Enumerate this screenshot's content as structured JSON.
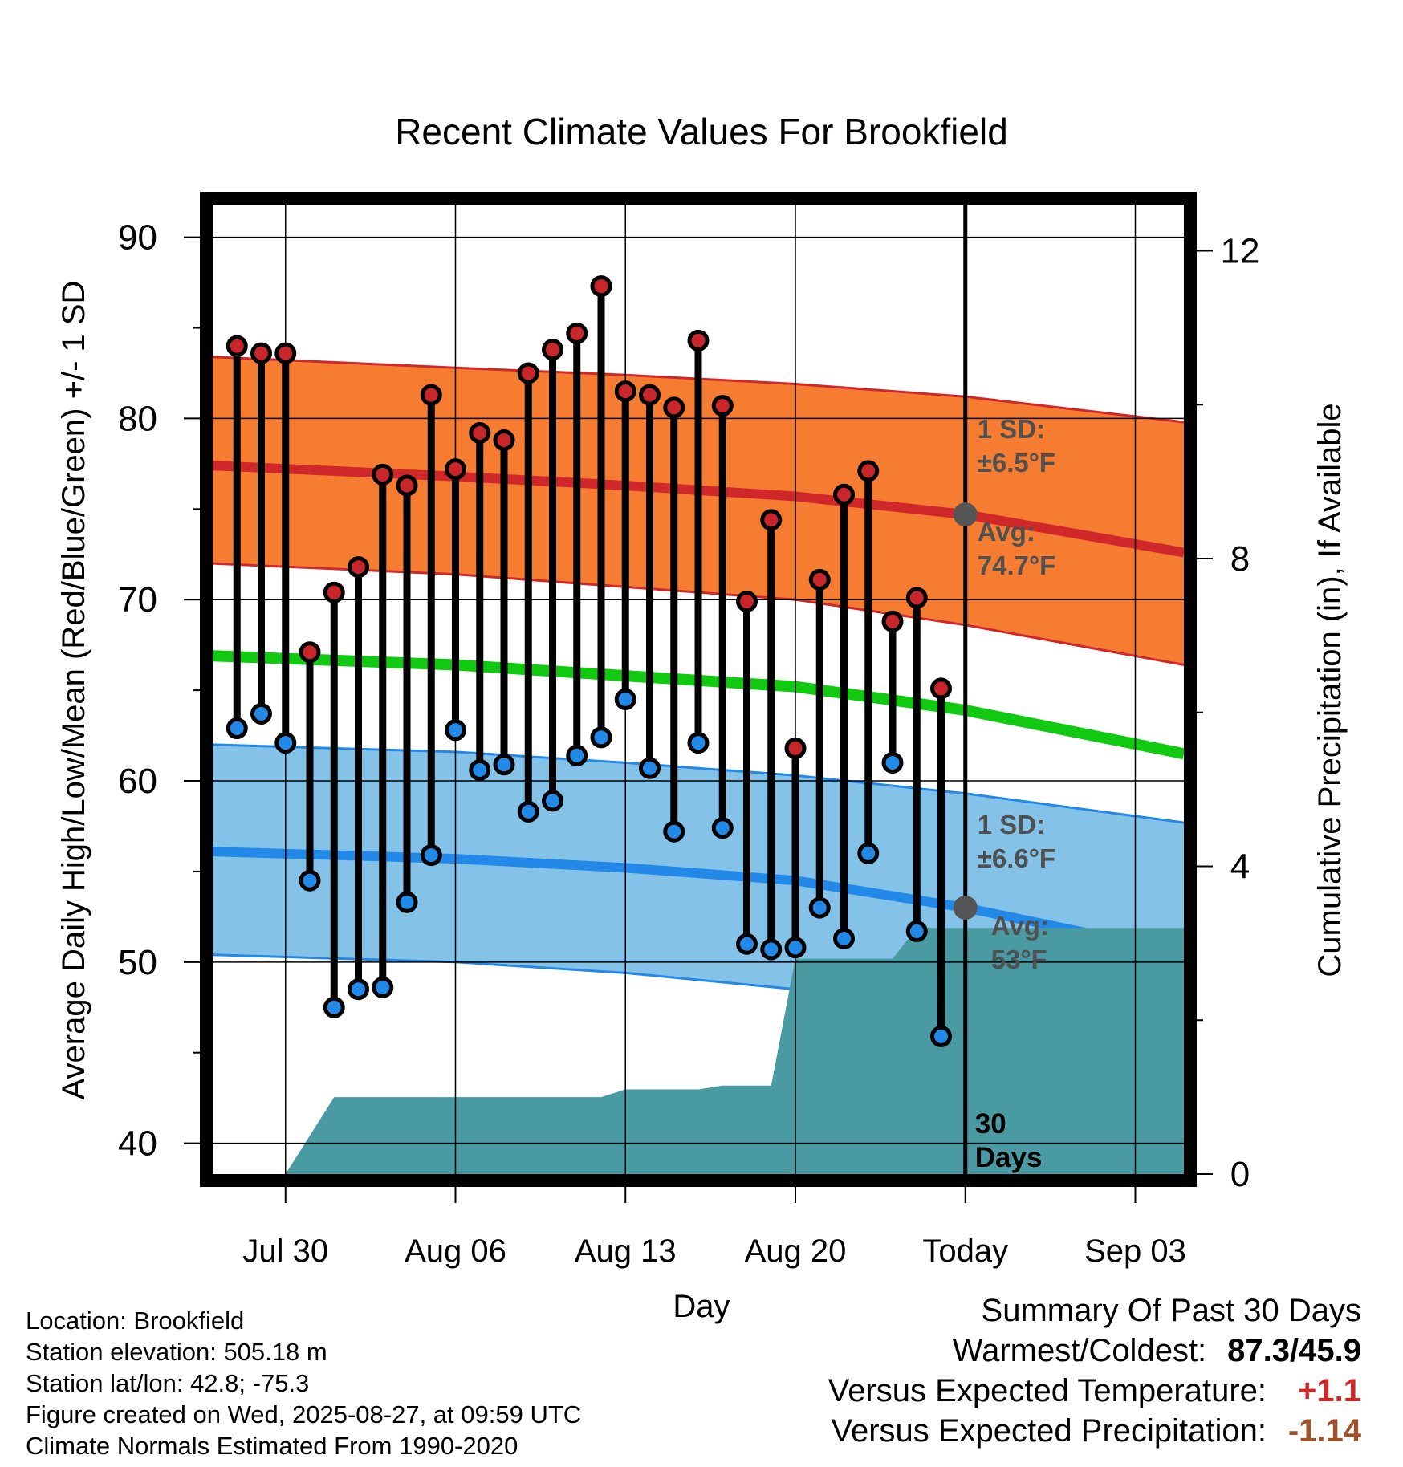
{
  "chart_data": {
    "type": "line",
    "title": "Recent Climate Values For Brookfield",
    "xlabel": "Day",
    "ylabel": "Average Daily High/Low/Mean (Red/Blue/Green) +/- 1 SD",
    "ylabel_right": "Cumulative Precipitation (in), If Available",
    "y_ticks": [
      "40",
      "50",
      "60",
      "70",
      "80",
      "90"
    ],
    "y_ticks_right": [
      "0",
      "4",
      "8",
      "12"
    ],
    "x_ticks": [
      "Jul 30",
      "Aug 06",
      "Aug 13",
      "Aug 20",
      "Today",
      "Sep 03"
    ],
    "x_tick_dates": [
      "2025-07-30",
      "2025-08-06",
      "2025-08-13",
      "2025-08-20",
      "2025-08-27",
      "2025-09-03"
    ],
    "xlim": [
      "2025-07-27",
      "2025-09-05"
    ],
    "ylim": [
      38.3,
      91.8
    ],
    "ylim_right": [
      0,
      12.6
    ],
    "today": "2025-08-27",
    "dates": [
      "2025-07-28",
      "2025-07-29",
      "2025-07-30",
      "2025-07-31",
      "2025-08-01",
      "2025-08-02",
      "2025-08-03",
      "2025-08-04",
      "2025-08-05",
      "2025-08-06",
      "2025-08-07",
      "2025-08-08",
      "2025-08-09",
      "2025-08-10",
      "2025-08-11",
      "2025-08-12",
      "2025-08-13",
      "2025-08-14",
      "2025-08-15",
      "2025-08-16",
      "2025-08-17",
      "2025-08-18",
      "2025-08-19",
      "2025-08-20",
      "2025-08-21",
      "2025-08-22",
      "2025-08-23",
      "2025-08-24",
      "2025-08-25",
      "2025-08-26"
    ],
    "series": [
      {
        "name": "High",
        "color": "#c8262a",
        "values": [
          84.0,
          83.6,
          83.6,
          67.1,
          70.4,
          71.8,
          76.9,
          76.3,
          81.3,
          77.2,
          79.2,
          78.8,
          82.5,
          83.8,
          84.7,
          87.3,
          81.5,
          81.3,
          80.6,
          84.3,
          80.7,
          69.9,
          74.4,
          61.8,
          71.1,
          75.8,
          77.1,
          68.8,
          70.1,
          65.1
        ]
      },
      {
        "name": "Low",
        "color": "#2389e8",
        "values": [
          62.9,
          63.7,
          62.1,
          54.5,
          47.5,
          48.5,
          48.6,
          53.3,
          55.9,
          62.8,
          60.6,
          60.9,
          58.3,
          58.9,
          61.4,
          62.4,
          64.5,
          60.7,
          57.2,
          62.1,
          57.4,
          51.0,
          50.7,
          50.8,
          53.0,
          51.3,
          56.0,
          61.0,
          51.7,
          45.9
        ]
      }
    ],
    "normals": {
      "dates": [
        "2025-07-27",
        "2025-08-06",
        "2025-08-13",
        "2025-08-20",
        "2025-08-27",
        "2025-09-05"
      ],
      "high_mean": [
        77.4,
        76.8,
        76.3,
        75.7,
        74.7,
        72.6
      ],
      "high_upper": [
        83.4,
        82.8,
        82.4,
        81.9,
        81.2,
        79.8
      ],
      "high_lower": [
        72.0,
        71.4,
        70.7,
        70.0,
        68.6,
        66.4
      ],
      "mean": [
        66.9,
        66.4,
        65.8,
        65.2,
        63.9,
        61.5
      ],
      "low_mean": [
        56.1,
        55.7,
        55.2,
        54.5,
        53.0,
        50.5
      ],
      "low_upper": [
        62.0,
        61.6,
        61.0,
        60.3,
        59.3,
        57.7
      ],
      "low_lower": [
        50.4,
        50.0,
        49.4,
        48.5,
        47.1,
        44.9
      ],
      "colors": {
        "high_band": "#f57c31",
        "high_line": "#d0282a",
        "low_band": "#85c2e8",
        "low_line": "#2389e8",
        "mean_line": "#11c911"
      }
    },
    "precipitation": {
      "color": "#4a9aa4",
      "dates": [
        "2025-07-29",
        "2025-07-30",
        "2025-08-01",
        "2025-08-04",
        "2025-08-08",
        "2025-08-12",
        "2025-08-13",
        "2025-08-16",
        "2025-08-17",
        "2025-08-19",
        "2025-08-20",
        "2025-08-24",
        "2025-08-25",
        "2025-09-05"
      ],
      "values": [
        0.0,
        0.0,
        1.0,
        1.0,
        1.0,
        1.0,
        1.1,
        1.1,
        1.15,
        1.15,
        2.8,
        2.8,
        3.2,
        3.2
      ]
    },
    "annotations": {
      "high_sd": [
        "1 SD:",
        "±6.5°F"
      ],
      "high_avg": [
        "Avg:",
        "74.7°F"
      ],
      "low_sd": [
        "1 SD:",
        "±6.6°F"
      ],
      "low_avg": [
        "Avg:",
        "53°F"
      ],
      "high_avg_value": 74.7,
      "low_avg_value": 53.0,
      "window": [
        "30",
        "Days"
      ]
    }
  },
  "footer": {
    "location": "Location: Brookfield",
    "elevation": "Station elevation: 505.18 m",
    "latlon": "Station lat/lon: 42.8; -75.3",
    "created": "Figure created on Wed, 2025-08-27, at 09:59 UTC",
    "normals": "Climate Normals Estimated From 1990-2020"
  },
  "summary": {
    "title": "Summary Of Past 30 Days",
    "warmest_label": "Warmest/Coldest:",
    "warmest_value": "87.3/45.9",
    "temp_label": "Versus Expected Temperature:",
    "temp_value": "+1.1",
    "precip_label": "Versus Expected Precipitation:",
    "precip_value": "-1.14"
  }
}
